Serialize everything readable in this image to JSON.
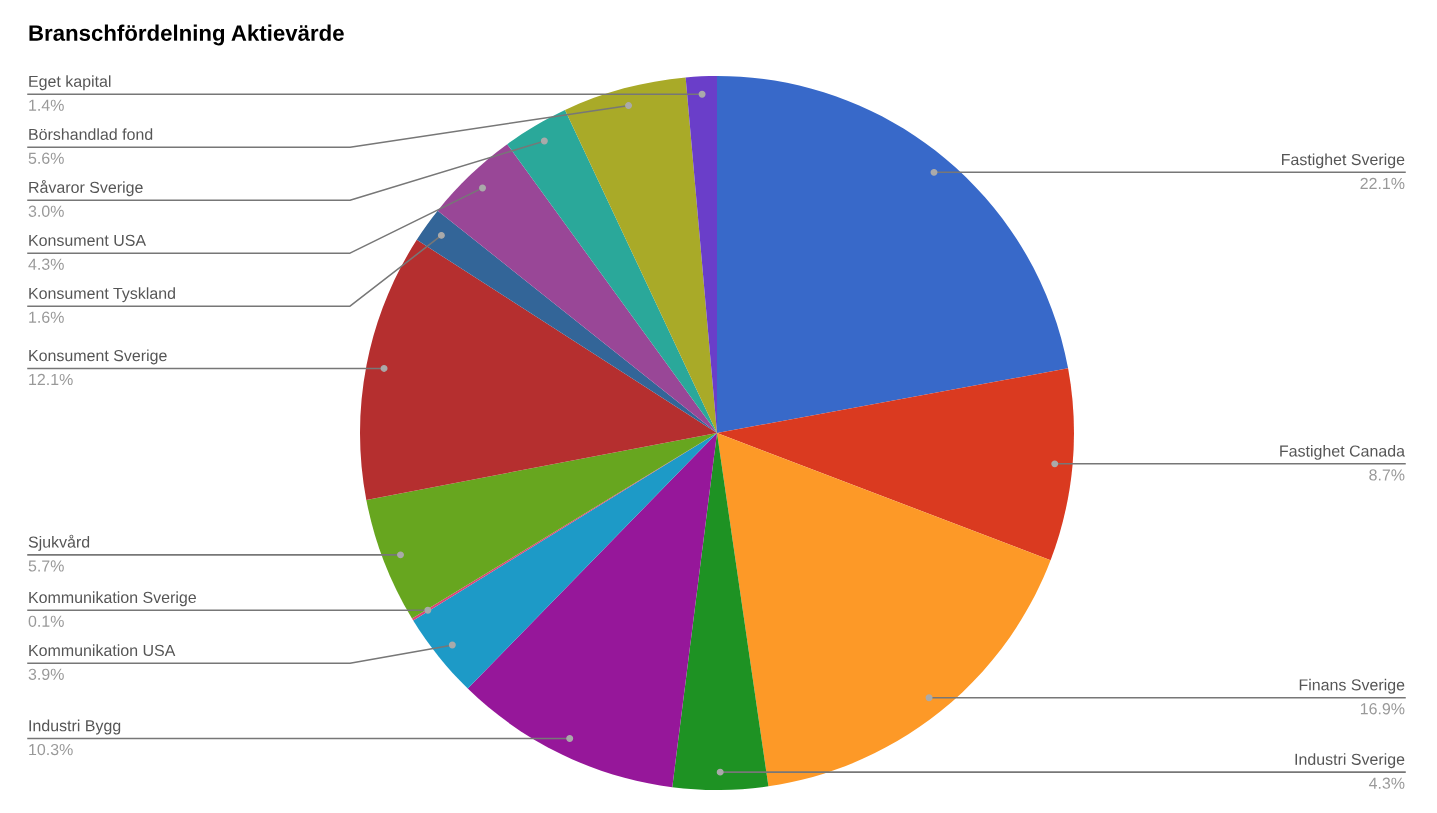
{
  "chart_data": {
    "type": "pie",
    "title": "Branschfördelning Aktievärde",
    "categories": [
      "Fastighet Sverige",
      "Fastighet Canada",
      "Finans Sverige",
      "Industri Sverige",
      "Industri Bygg",
      "Kommunikation USA",
      "Kommunikation Sverige",
      "Sjukvård",
      "Konsument Sverige",
      "Konsument Tyskland",
      "Konsument USA",
      "Råvaror Sverige",
      "Börshandlad fond",
      "Eget kapital"
    ],
    "values": [
      22.1,
      8.7,
      16.9,
      4.3,
      10.3,
      3.9,
      0.1,
      5.7,
      12.1,
      1.6,
      4.3,
      3.0,
      5.6,
      1.4
    ],
    "value_labels": [
      "22.1%",
      "8.7%",
      "16.9%",
      "4.3%",
      "10.3%",
      "3.9%",
      "0.1%",
      "5.7%",
      "12.1%",
      "1.6%",
      "4.3%",
      "3.0%",
      "5.6%",
      "1.4%"
    ],
    "colors": [
      "#3869c9",
      "#da3a20",
      "#fd9927",
      "#1e9223",
      "#96179a",
      "#1d9ac7",
      "#dd4477",
      "#67a61f",
      "#b52f2f",
      "#336598",
      "#994797",
      "#2aa89a",
      "#a9aa28",
      "#6a3ec9"
    ],
    "legend": false
  }
}
